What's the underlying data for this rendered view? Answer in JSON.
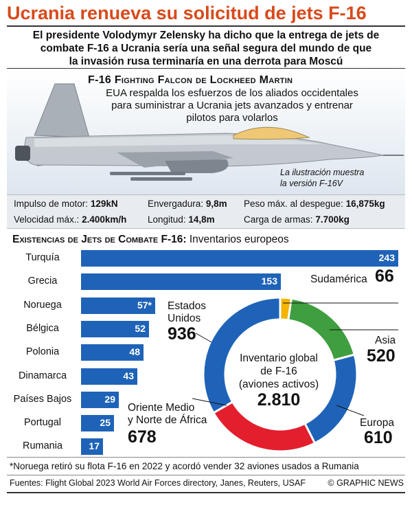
{
  "header": {
    "title": "Ucrania renueva su solicitud de jets F-16",
    "subtitle_lines": [
      "El presidente Volodymyr Zelensky ha dicho que la entrega de jets de",
      "combate F-16 a Ucrania sería una señal segura del mundo de que",
      "la invasión rusa terminaría en una derrota para Moscú"
    ]
  },
  "aircraft": {
    "title": "F-16 Fighting Falcon de Lockheed Martin",
    "description_lines": [
      "EUA respalda los esfuerzos de los aliados occidentales",
      "para suministrar a Ucrania jets avanzados y entrenar",
      "pilotos para volarlos"
    ],
    "note_lines": [
      "La ilustración muestra",
      "la versión F-16V"
    ],
    "specs": [
      {
        "label": "Impulso de motor:",
        "value": "129kN"
      },
      {
        "label": "Envergadura:",
        "value": "9,8m"
      },
      {
        "label": "Peso máx. al despegue:",
        "value": "16,875kg"
      },
      {
        "label": "Velocidad máx.:",
        "value": "2.400km/h"
      },
      {
        "label": "Longitud:",
        "value": "14,8m"
      },
      {
        "label": "Carga de armas:",
        "value": "7.700kg"
      }
    ]
  },
  "section": {
    "title_bold": "Existencias de Jets de Combate F-16:",
    "title_rest": " Inventarios europeos"
  },
  "chart_data": [
    {
      "type": "bar",
      "title": "Existencias de Jets de Combate F-16: Inventarios europeos",
      "categories": [
        "Turquía",
        "Grecia",
        "Noruega",
        "Bélgica",
        "Polonia",
        "Dinamarca",
        "Países Bajos",
        "Portugal",
        "Rumania"
      ],
      "values": [
        243,
        153,
        57,
        52,
        48,
        43,
        29,
        25,
        17
      ],
      "labels": [
        "243",
        "153",
        "57*",
        "52",
        "48",
        "43",
        "29",
        "25",
        "17"
      ],
      "color": "#1f63b8"
    },
    {
      "type": "pie",
      "center_label_lines": [
        "Inventario global",
        "de F-16",
        "(aviones activos)"
      ],
      "total": "2.810",
      "slices": [
        {
          "name": "Sudamérica",
          "value": 66,
          "color": "#f4b400"
        },
        {
          "name": "Asia",
          "value": 520,
          "color": "#3f9e3f"
        },
        {
          "name": "Europa",
          "value": 610,
          "color": "#1f63b8"
        },
        {
          "name": "Oriente Medio y Norte de África",
          "value": 678,
          "color": "#e31e2d"
        },
        {
          "name": "Estados Unidos",
          "value": 936,
          "color": "#1f63b8"
        }
      ],
      "label_lines": {
        "Sudamérica": [
          "Sudamérica"
        ],
        "Asia": [
          "Asia"
        ],
        "Europa": [
          "Europa"
        ],
        "Oriente Medio y Norte de África": [
          "Oriente Medio",
          "y Norte de África"
        ],
        "Estados Unidos": [
          "Estados",
          "Unidos"
        ]
      }
    }
  ],
  "footer": {
    "footnote": "*Noruega retiró su flota F-16 en 2022 y acordó vender 32 aviones usados a Rumania",
    "sources": "Fuentes: Flight Global 2023 World Air Forces directory, Janes, Reuters, USAF",
    "credit": "© GRAPHIC NEWS"
  }
}
